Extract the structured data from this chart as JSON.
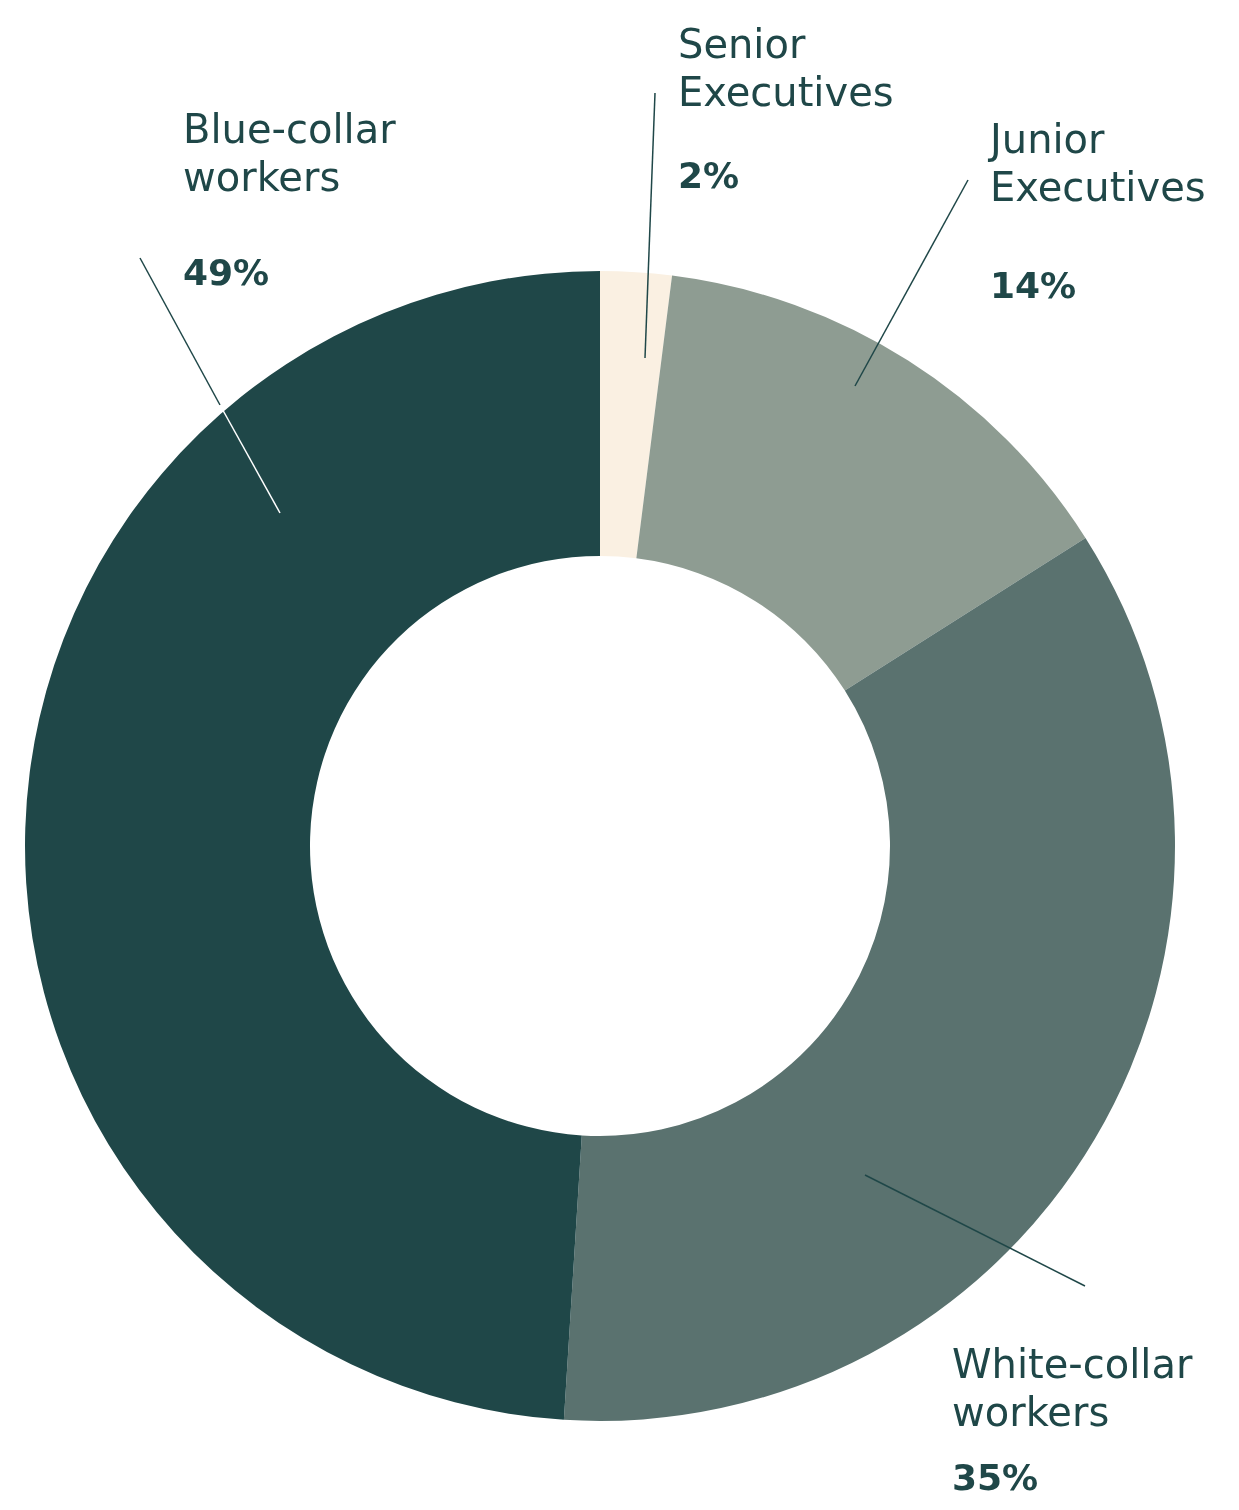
{
  "chart_data": {
    "type": "donut",
    "categories": [
      "Senior Executives",
      "Junior Executives",
      "White-collar workers",
      "Blue-collar workers"
    ],
    "values": [
      2,
      14,
      35,
      49
    ],
    "colors": [
      "#faf0e2",
      "#8e9c92",
      "#5a726f",
      "#1f4748"
    ],
    "value_labels": [
      "2%",
      "14%",
      "35%",
      "49%"
    ]
  }
}
